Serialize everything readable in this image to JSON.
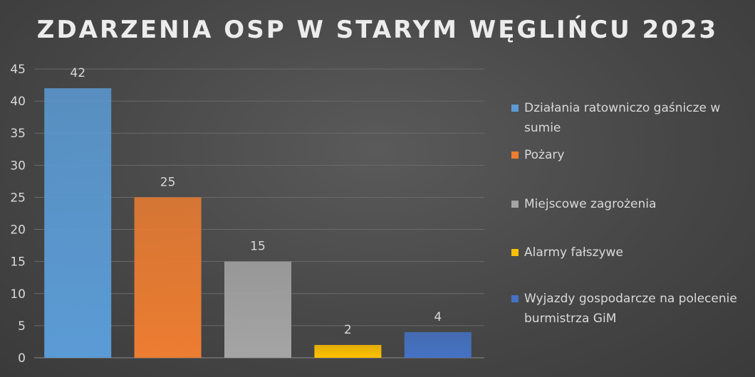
{
  "chart_data": {
    "type": "bar",
    "title": "ZDARZENIA OSP W STARYM WĘGLIŃCU 2023",
    "categories": [
      "Działania ratowniczo gaśnicze w sumie",
      "Pożary",
      "Miejscowe zagrożenia",
      "Alarmy fałszywe",
      "Wyjazdy gospodarcze na polecenie burmistrza GiM"
    ],
    "values": [
      42,
      25,
      15,
      2,
      4
    ],
    "colors": [
      "#5b9bd5",
      "#ed7d31",
      "#a5a5a5",
      "#ffc000",
      "#4472c4"
    ],
    "ylim": [
      0,
      45
    ],
    "yticks": [
      "0",
      "5",
      "10",
      "15",
      "20",
      "25",
      "30",
      "35",
      "40",
      "45"
    ],
    "grid": true,
    "legend_position": "right",
    "data_labels": [
      "42",
      "25",
      "15",
      "2",
      "4"
    ]
  }
}
